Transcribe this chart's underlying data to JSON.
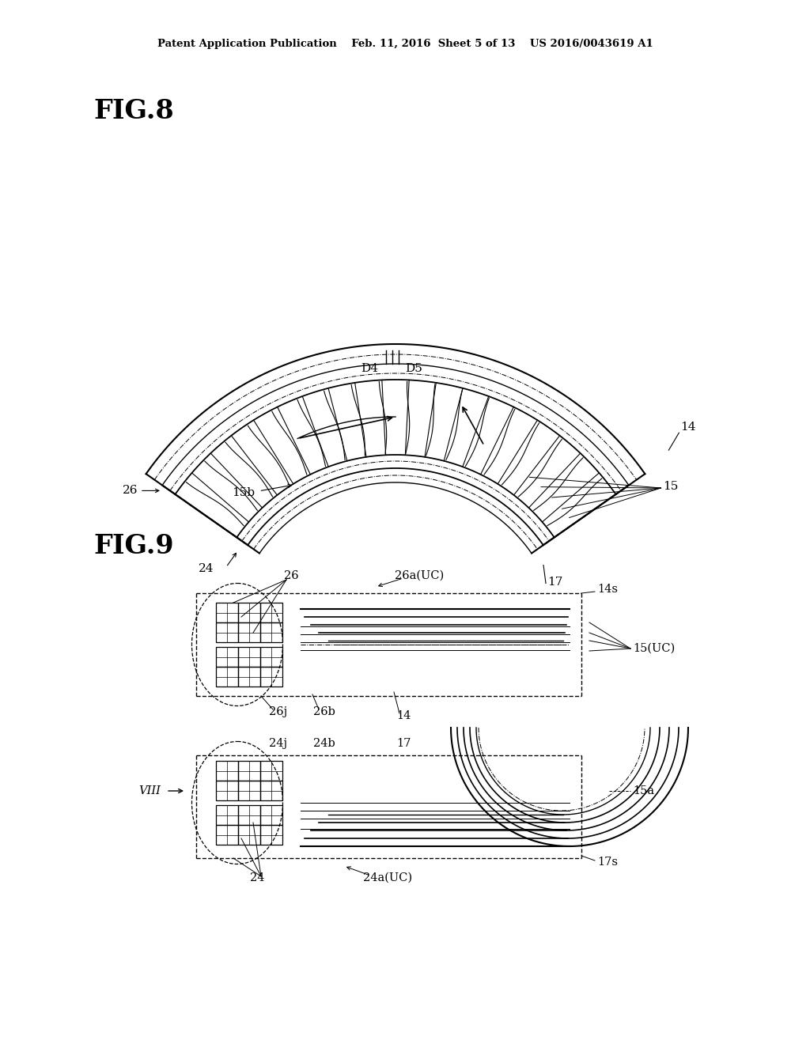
{
  "bg_color": "#ffffff",
  "line_color": "#000000",
  "header_text": "Patent Application Publication    Feb. 11, 2016  Sheet 5 of 13    US 2016/0043619 A1",
  "fig8_label": "FIG.8",
  "fig9_label": "FIG.9"
}
